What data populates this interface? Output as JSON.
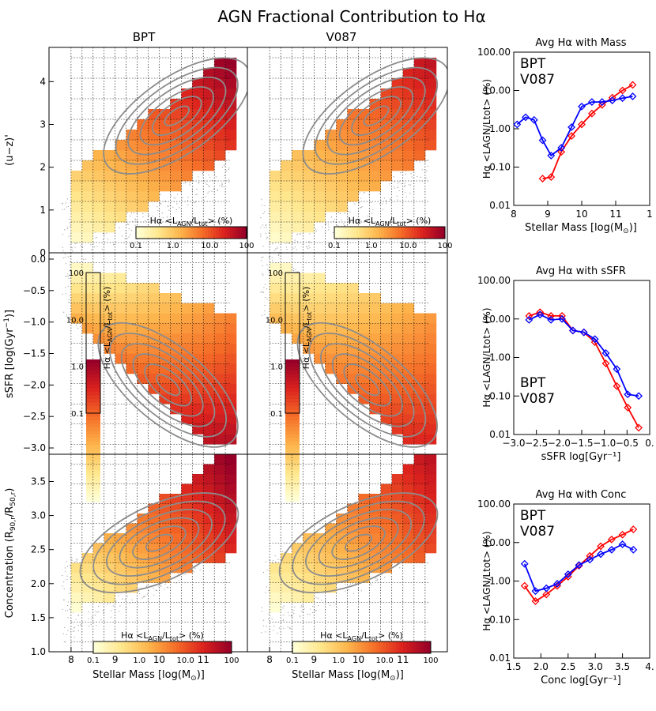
{
  "title": "AGN Fractional Contribution to Hα",
  "columns": [
    "BPT",
    "V087"
  ],
  "grid_x_label": "Stellar Mass [log(M",
  "grid_x_label_sub": "⊙",
  "grid_x_label_end": ")]",
  "grid_y_labels": [
    "(u−z)'",
    "sSFR [log(Gyr",
    "Concentration (R"
  ],
  "colorbar_label": "Hα  <L",
  "colorbar_label_agn": "AGN",
  "colorbar_label_mid": "/L",
  "colorbar_label_tot": "tot",
  "colorbar_label_end": ">  (%)",
  "colorbar_ticks": [
    "0.1",
    "1.0",
    "10.0",
    "100"
  ],
  "colors": {
    "bpt": "#ff0000",
    "v087": "#0000ff",
    "contour": "#8c8c8c"
  },
  "chart_data": [
    {
      "type": "heatmap",
      "panel": "BPT u-z vs mass",
      "title": "BPT",
      "xlim": [
        7.5,
        12
      ],
      "ylim": [
        0,
        4.8
      ],
      "xticks": [
        "8",
        "9",
        "10",
        "11",
        "12"
      ],
      "yticks": [
        "0",
        "1",
        "2",
        "3",
        "4"
      ],
      "ylabel": "(u−z)'",
      "cells_pct": "shown by color, 0.1–100 %"
    },
    {
      "type": "heatmap",
      "panel": "V087 u-z vs mass",
      "title": "V087",
      "xlim": [
        7.5,
        12
      ],
      "ylim": [
        0,
        4.8
      ]
    },
    {
      "type": "heatmap",
      "panel": "BPT sSFR vs mass",
      "xlim": [
        7.5,
        12
      ],
      "ylim": [
        -3.1,
        0.1
      ],
      "yticks": [
        "0.0",
        "−0.5",
        "−1.0",
        "−1.5",
        "−2.0",
        "−2.5",
        "−3.0"
      ],
      "ylabel": "sSFR [log(Gyr⁻¹)]"
    },
    {
      "type": "heatmap",
      "panel": "V087 sSFR vs mass",
      "xlim": [
        7.5,
        12
      ],
      "ylim": [
        -3.1,
        0.1
      ]
    },
    {
      "type": "heatmap",
      "panel": "BPT concentration vs mass",
      "xlim": [
        7.5,
        12
      ],
      "ylim": [
        1.0,
        3.9
      ],
      "yticks": [
        "1.0",
        "1.5",
        "2.0",
        "2.5",
        "3.0",
        "3.5"
      ],
      "xlabel": "Stellar Mass [log(M⊙)]",
      "ylabel": "Concentration (R90,r/R50,r)"
    },
    {
      "type": "heatmap",
      "panel": "V087 concentration vs mass",
      "xlim": [
        7.5,
        12
      ],
      "ylim": [
        1.0,
        3.9
      ],
      "xlabel": "Stellar Mass [log(M⊙)]"
    },
    {
      "type": "line",
      "title": "Avg Hα with Mass",
      "xlabel": "Stellar Mass [log(M",
      "ylabel": "Hα <LAGN/Ltot> (%)",
      "log_y": true,
      "xlim": [
        8,
        12
      ],
      "ylim": [
        0.01,
        100
      ],
      "xticks": [
        "8",
        "9",
        "10",
        "11",
        "1"
      ],
      "yticks": [
        "0.01",
        "0.10",
        "1.00",
        "10.00",
        "100.00"
      ],
      "legend": [
        "BPT",
        "V087"
      ],
      "series": [
        {
          "name": "BPT",
          "color": "#ff0000",
          "x": [
            8.85,
            9.1,
            9.4,
            9.7,
            10.0,
            10.3,
            10.6,
            10.9,
            11.2,
            11.5
          ],
          "y": [
            0.05,
            0.055,
            0.25,
            0.65,
            1.3,
            2.5,
            4.2,
            6.5,
            10.0,
            14.0
          ]
        },
        {
          "name": "V087",
          "color": "#0000ff",
          "x": [
            8.1,
            8.35,
            8.6,
            8.85,
            9.1,
            9.4,
            9.7,
            10.0,
            10.3,
            10.6,
            10.9,
            11.2,
            11.5
          ],
          "y": [
            1.3,
            2.0,
            1.7,
            0.5,
            0.2,
            0.32,
            1.1,
            3.8,
            5.0,
            5.0,
            5.5,
            6.3,
            7.0
          ]
        }
      ]
    },
    {
      "type": "line",
      "title": "Avg Hα with sSFR",
      "xlabel": "sSFR log[Gyr⁻¹]",
      "ylabel": "Hα <LAGN/Ltot> (%)",
      "log_y": true,
      "xlim": [
        -3.1,
        0.0
      ],
      "ylim": [
        0.01,
        100
      ],
      "xticks": [
        "−3.0",
        "−2.5",
        "−2.0",
        "−1.5",
        "−1.0",
        "−0.5",
        "0."
      ],
      "yticks": [
        "0.01",
        "0.10",
        "1.00",
        "10.00",
        "100.00"
      ],
      "legend": [
        "BPT",
        "V087"
      ],
      "series": [
        {
          "name": "BPT",
          "color": "#ff0000",
          "x": [
            -2.75,
            -2.5,
            -2.25,
            -2.0,
            -1.75,
            -1.5,
            -1.25,
            -1.0,
            -0.75,
            -0.5,
            -0.25
          ],
          "y": [
            12.0,
            15.0,
            12.0,
            12.0,
            5.0,
            4.5,
            2.5,
            0.7,
            0.18,
            0.05,
            0.015
          ]
        },
        {
          "name": "V087",
          "color": "#0000ff",
          "x": [
            -2.75,
            -2.5,
            -2.25,
            -2.0,
            -1.75,
            -1.5,
            -1.25,
            -1.0,
            -0.75,
            -0.5,
            -0.25
          ],
          "y": [
            9.5,
            13.0,
            9.5,
            10.0,
            5.0,
            4.5,
            3.0,
            1.3,
            0.5,
            0.11,
            0.1
          ]
        }
      ]
    },
    {
      "type": "line",
      "title": "Avg Hα with Conc",
      "xlabel": "Conc log[Gyr⁻¹]",
      "ylabel": "Hα <LAGN/Ltot> (%)",
      "log_y": true,
      "xlim": [
        1.5,
        4.0
      ],
      "ylim": [
        0.01,
        100
      ],
      "xticks": [
        "1.5",
        "2.0",
        "2.5",
        "3.0",
        "3.5",
        "4."
      ],
      "yticks": [
        "0.01",
        "0.10",
        "1.00",
        "10.00",
        "100.00"
      ],
      "legend": [
        "BPT",
        "V087"
      ],
      "series": [
        {
          "name": "BPT",
          "color": "#ff0000",
          "x": [
            1.7,
            1.9,
            2.1,
            2.3,
            2.5,
            2.7,
            2.9,
            3.1,
            3.3,
            3.5,
            3.7
          ],
          "y": [
            0.75,
            0.3,
            0.45,
            0.75,
            1.3,
            2.5,
            4.5,
            8.0,
            12.0,
            16.0,
            22.0
          ]
        },
        {
          "name": "V087",
          "color": "#0000ff",
          "x": [
            1.7,
            1.9,
            2.1,
            2.3,
            2.5,
            2.7,
            2.9,
            3.1,
            3.3,
            3.5,
            3.7
          ],
          "y": [
            2.8,
            0.55,
            0.65,
            0.85,
            1.5,
            2.6,
            3.6,
            5.0,
            6.5,
            9.0,
            6.5
          ]
        }
      ]
    }
  ]
}
